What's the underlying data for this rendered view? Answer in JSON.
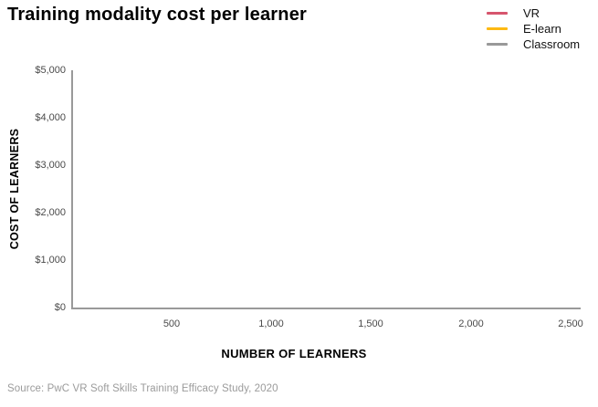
{
  "title": "Training modality cost per learner",
  "legend": {
    "items": [
      {
        "label": "VR",
        "color": "#d6556d"
      },
      {
        "label": "E-learn",
        "color": "#fdb913"
      },
      {
        "label": "Classroom",
        "color": "#999999"
      }
    ]
  },
  "source": "Source: PwC VR Soft Skills Training Efficacy Study, 2020",
  "colors": {
    "axis": "#999999",
    "tick_label": "#4a4a4a",
    "title": "#000000",
    "source": "#9b9b9b",
    "background": "#ffffff"
  },
  "chart_data": {
    "type": "line",
    "title": "Training modality cost per learner",
    "xlabel": "NUMBER OF LEARNERS",
    "ylabel": "COST OF LEARNERS",
    "xlim": [
      0,
      2550
    ],
    "ylim": [
      0,
      5000
    ],
    "grid": false,
    "legend_position": "top-right",
    "x_ticks": [
      500,
      1000,
      1500,
      2000,
      2500
    ],
    "x_tick_labels": [
      "500",
      "1,000",
      "1,500",
      "2,000",
      "2,500"
    ],
    "y_ticks": [
      0,
      1000,
      2000,
      3000,
      4000,
      5000
    ],
    "y_tick_labels": [
      "$0",
      "$1,000",
      "$2,000",
      "$3,000",
      "$4,000",
      "$5,000"
    ],
    "series": [
      {
        "name": "VR",
        "color": "#d6556d",
        "x": [],
        "values": []
      },
      {
        "name": "E-learn",
        "color": "#fdb913",
        "x": [],
        "values": []
      },
      {
        "name": "Classroom",
        "color": "#999999",
        "x": [],
        "values": []
      }
    ],
    "note": "Plot area is rendered empty: axes, ticks and legend are shown but no data lines are drawn."
  }
}
